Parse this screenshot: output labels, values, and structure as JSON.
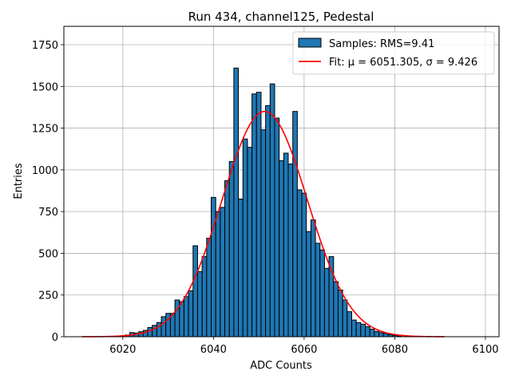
{
  "chart_data": {
    "type": "bar",
    "title": "Run 434, channel125, Pedestal",
    "xlabel": "ADC Counts",
    "ylabel": "Entries",
    "xlim": [
      6007,
      6103
    ],
    "ylim": [
      0,
      1860
    ],
    "xticks": [
      6020,
      6040,
      6060,
      6080,
      6100
    ],
    "yticks": [
      0,
      250,
      500,
      750,
      1000,
      1250,
      1500,
      1750
    ],
    "grid": true,
    "legend_position": "top-right",
    "bin_width": 1,
    "histogram": {
      "name": "Samples: RMS=9.41",
      "color": "#1f77b4",
      "bins": [
        6021,
        6022,
        6023,
        6024,
        6025,
        6026,
        6027,
        6028,
        6029,
        6030,
        6031,
        6032,
        6033,
        6034,
        6035,
        6036,
        6037,
        6038,
        6039,
        6040,
        6041,
        6042,
        6043,
        6044,
        6045,
        6046,
        6047,
        6048,
        6049,
        6050,
        6051,
        6052,
        6053,
        6054,
        6055,
        6056,
        6057,
        6058,
        6059,
        6060,
        6061,
        6062,
        6063,
        6064,
        6065,
        6066,
        6067,
        6068,
        6069,
        6070,
        6071,
        6072,
        6073,
        6074,
        6075,
        6076,
        6077,
        6078,
        6079,
        6080,
        6081
      ],
      "counts": [
        10,
        25,
        22,
        30,
        38,
        55,
        68,
        85,
        120,
        140,
        140,
        220,
        210,
        240,
        275,
        545,
        390,
        480,
        590,
        835,
        750,
        775,
        935,
        1050,
        1610,
        825,
        1185,
        1135,
        1455,
        1465,
        1240,
        1385,
        1515,
        1310,
        1055,
        1100,
        1035,
        1350,
        880,
        860,
        630,
        700,
        560,
        520,
        410,
        480,
        330,
        280,
        220,
        150,
        100,
        85,
        75,
        60,
        45,
        32,
        25,
        20,
        12,
        8,
        5
      ]
    },
    "fit": {
      "name": "Fit: μ = 6051.305, σ = 9.426",
      "color": "#ff0000",
      "mu": 6051.305,
      "sigma": 9.426,
      "amplitude": 1350,
      "x_range": [
        6011,
        6091
      ]
    }
  }
}
